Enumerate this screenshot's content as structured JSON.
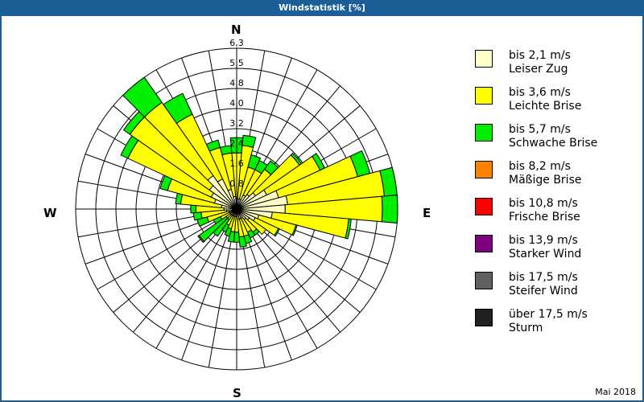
{
  "window": {
    "title": "Windstatistik [%]"
  },
  "footer": {
    "date": "Mai 2018"
  },
  "compass": {
    "N": "N",
    "E": "E",
    "S": "S",
    "W": "W"
  },
  "legend": [
    {
      "range": "bis 2,1 m/s",
      "name": "Leiser Zug",
      "color": "#ffffc8"
    },
    {
      "range": "bis 3,6 m/s",
      "name": "Leichte Brise",
      "color": "#ffff00"
    },
    {
      "range": "bis 5,7 m/s",
      "name": "Schwache Brise",
      "color": "#00ee00"
    },
    {
      "range": "bis 8,2 m/s",
      "name": "Mäßige Brise",
      "color": "#ff8000"
    },
    {
      "range": "bis 10,8 m/s",
      "name": "Frische Brise",
      "color": "#ff0000"
    },
    {
      "range": "bis 13,9 m/s",
      "name": "Starker Wind",
      "color": "#800080"
    },
    {
      "range": "bis 17,5 m/s",
      "name": "Steifer Wind",
      "color": "#606060"
    },
    {
      "range": "über 17,5 m/s",
      "name": "Sturm",
      "color": "#202020"
    }
  ],
  "chart_data": {
    "type": "polar-stacked-bar (wind rose)",
    "title": "Windstatistik [%]",
    "subtitle": "Mai 2018",
    "radial_ticks": [
      "0,8",
      "1,6",
      "2,4",
      "3,2",
      "4,0",
      "4,8",
      "5,5",
      "6,3"
    ],
    "rmax": 6.3,
    "directions_deg": [
      0,
      10,
      20,
      30,
      40,
      50,
      60,
      70,
      80,
      90,
      100,
      110,
      120,
      130,
      140,
      150,
      160,
      170,
      180,
      190,
      200,
      210,
      220,
      230,
      240,
      250,
      260,
      270,
      280,
      290,
      300,
      310,
      320,
      330,
      340,
      350
    ],
    "series": [
      {
        "name": "bis 2,1 m/s",
        "values": [
          0.3,
          0.4,
          0.4,
          0.6,
          0.7,
          0.9,
          1.3,
          1.7,
          2.0,
          1.9,
          1.4,
          0.9,
          0.8,
          0.6,
          0.5,
          0.4,
          0.4,
          0.4,
          0.3,
          0.3,
          0.3,
          0.3,
          0.3,
          0.3,
          0.3,
          0.3,
          0.4,
          0.5,
          0.6,
          0.9,
          1.1,
          1.3,
          1.6,
          1.3,
          0.8,
          0.5
        ]
      },
      {
        "name": "bis 3,6 m/s",
        "values": [
          1.9,
          2.1,
          1.3,
          1.1,
          1.2,
          2.1,
          2.3,
          3.2,
          3.8,
          3.8,
          3.0,
          1.5,
          1.0,
          0.8,
          0.6,
          0.6,
          0.7,
          0.7,
          0.6,
          0.6,
          0.5,
          0.4,
          0.2,
          0.2,
          0.4,
          0.9,
          1.0,
          1.1,
          1.6,
          1.9,
          3.6,
          3.8,
          3.5,
          2.8,
          1.7,
          1.7
        ]
      },
      {
        "name": "bis 5,7 m/s",
        "values": [
          0.6,
          0.4,
          0.5,
          0.4,
          0.4,
          0.1,
          0.2,
          0.5,
          0.5,
          0.6,
          0.1,
          0.05,
          0.05,
          0.0,
          0.15,
          0.25,
          0.3,
          0.4,
          0.4,
          0.4,
          0.3,
          0.3,
          0.8,
          1.3,
          0.3,
          0.4,
          0.3,
          0.2,
          0.2,
          0.3,
          0.3,
          0.3,
          1.2,
          0.9,
          0.3,
          0.3
        ]
      },
      {
        "name": "bis 8,2 m/s",
        "values": [
          0,
          0,
          0,
          0,
          0,
          0,
          0,
          0,
          0,
          0,
          0,
          0,
          0,
          0,
          0,
          0,
          0,
          0,
          0,
          0,
          0,
          0,
          0,
          0.05,
          0,
          0,
          0,
          0,
          0,
          0,
          0,
          0,
          0,
          0,
          0,
          0
        ]
      },
      {
        "name": "bis 10,8 m/s",
        "values": [
          0,
          0,
          0,
          0,
          0,
          0,
          0,
          0,
          0,
          0,
          0,
          0,
          0,
          0,
          0,
          0,
          0,
          0,
          0,
          0,
          0,
          0,
          0,
          0,
          0,
          0,
          0,
          0,
          0,
          0,
          0,
          0,
          0,
          0,
          0,
          0
        ]
      },
      {
        "name": "bis 13,9 m/s",
        "values": [
          0,
          0,
          0,
          0,
          0,
          0,
          0,
          0,
          0,
          0,
          0,
          0,
          0,
          0,
          0,
          0,
          0,
          0,
          0,
          0,
          0,
          0,
          0,
          0,
          0,
          0,
          0,
          0,
          0,
          0,
          0,
          0,
          0,
          0,
          0,
          0
        ]
      },
      {
        "name": "bis 17,5 m/s",
        "values": [
          0,
          0,
          0,
          0,
          0,
          0,
          0,
          0,
          0,
          0,
          0,
          0,
          0,
          0,
          0,
          0,
          0,
          0,
          0,
          0,
          0,
          0,
          0,
          0,
          0,
          0,
          0,
          0,
          0,
          0,
          0,
          0,
          0,
          0,
          0,
          0
        ]
      },
      {
        "name": "über 17,5 m/s",
        "values": [
          0,
          0,
          0,
          0,
          0,
          0,
          0,
          0,
          0,
          0,
          0,
          0,
          0,
          0,
          0,
          0,
          0,
          0,
          0,
          0,
          0,
          0,
          0,
          0,
          0,
          0,
          0,
          0,
          0,
          0,
          0,
          0,
          0,
          0,
          0,
          0
        ]
      }
    ],
    "grid": true,
    "legend_position": "right"
  }
}
